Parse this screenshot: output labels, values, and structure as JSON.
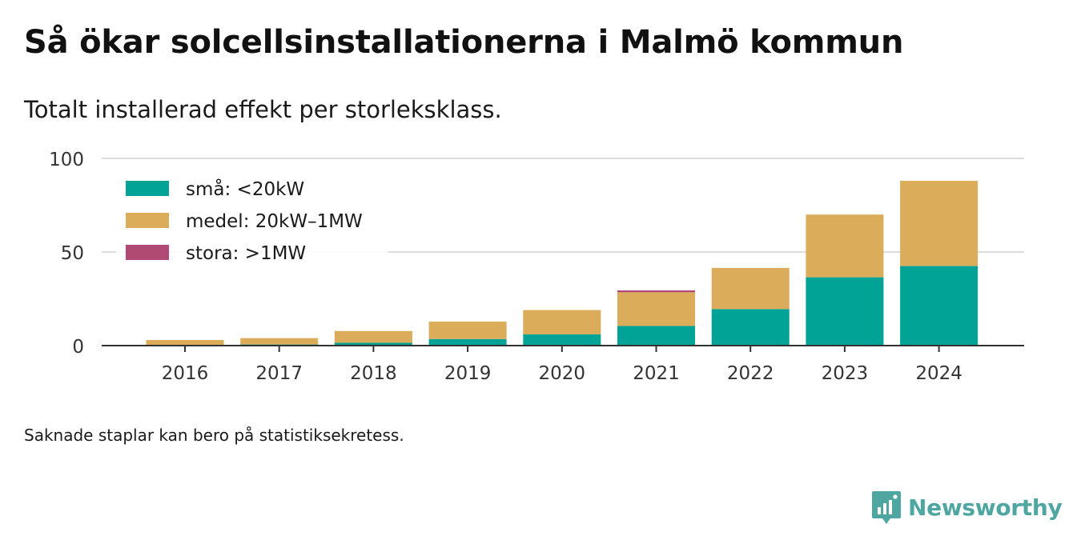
{
  "title": "Så ökar solcellsinstallationerna i Malmö kommun",
  "subtitle": "Totalt installerad effekt per storleksklass.",
  "note": "Saknade staplar kan bero på statistiksekretess.",
  "brand": {
    "name": "Newsworthy",
    "icon": "newsworthy-chart-icon",
    "color": "#4fa6a1"
  },
  "chart_data": {
    "type": "bar",
    "stacked": true,
    "categories": [
      "2016",
      "2017",
      "2018",
      "2019",
      "2020",
      "2021",
      "2022",
      "2023",
      "2024"
    ],
    "series": [
      {
        "name": "små: <20kW",
        "color": "#00a396",
        "values": [
          0.3,
          0.6,
          1.5,
          3.5,
          6,
          10.5,
          19.5,
          36.5,
          42.5
        ]
      },
      {
        "name": "medel: 20kW–1MW",
        "color": "#dbad5a",
        "values": [
          2.7,
          3.4,
          6.3,
          9.3,
          13,
          18,
          22,
          33.5,
          45.5
        ]
      },
      {
        "name": "stora: >1MW",
        "color": "#b04a75",
        "values": [
          0,
          0,
          0,
          0,
          0,
          1,
          0,
          0,
          0
        ]
      }
    ],
    "yticks": [
      0,
      50,
      100
    ],
    "ylim": [
      0,
      100
    ],
    "grid": true,
    "legend_position": "top-left",
    "xlabel": "",
    "ylabel": ""
  }
}
